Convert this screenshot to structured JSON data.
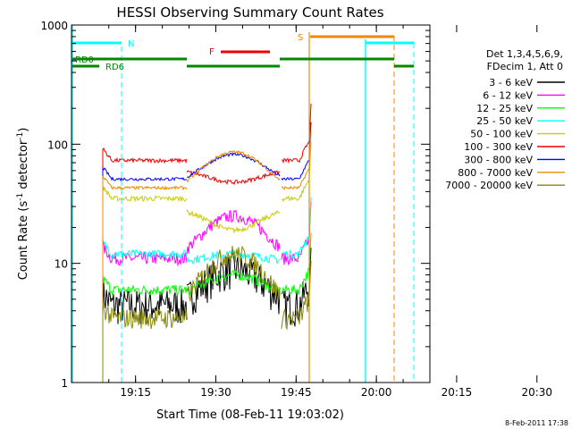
{
  "chart_data": {
    "type": "line",
    "title": "HESSI Observing Summary Count Rates",
    "xlabel": "Start Time (08-Feb-11 19:03:02)",
    "ylabel_main": "Count Rate (s",
    "ylabel_sup1": "-1",
    "ylabel_mid": " detector",
    "ylabel_sup2": "-1",
    "ylabel_end": ")",
    "yscale": "log",
    "ylim": [
      1,
      1000
    ],
    "xlim_minutes": [
      3.03,
      70.0
    ],
    "x_ticks": [
      {
        "m": 15,
        "label": "19:15"
      },
      {
        "m": 30,
        "label": "19:30"
      },
      {
        "m": 45,
        "label": "19:45"
      },
      {
        "m": 60,
        "label": "20:00"
      },
      {
        "m": 75,
        "label": "20:15"
      },
      {
        "m": 90,
        "label": "20:30"
      }
    ],
    "y_ticks": [
      {
        "v": 1,
        "label": "1"
      },
      {
        "v": 10,
        "label": "10"
      },
      {
        "v": 100,
        "label": "100"
      },
      {
        "v": 1000,
        "label": "1000"
      }
    ],
    "legend_header": [
      "Det 1,3,4,5,6,9,",
      "FDecim 1, Att 0"
    ],
    "series": [
      {
        "name": "3 - 6 keV",
        "color": "#000000",
        "level": 4.5,
        "peak": 9
      },
      {
        "name": "6 - 12 keV",
        "color": "#ff00ff",
        "level": 11,
        "peak": 25
      },
      {
        "name": "12 - 25 keV",
        "color": "#00ff00",
        "level": 6,
        "peak": 8
      },
      {
        "name": "25 - 50 keV",
        "color": "#00ffff",
        "level": 12,
        "peak": 12
      },
      {
        "name": "50 - 100 keV",
        "color": "#cccc00",
        "level": 35,
        "peak": 19
      },
      {
        "name": "100 - 300 keV",
        "color": "#ee0000",
        "level": 73,
        "peak": 48
      },
      {
        "name": "300 - 800 keV",
        "color": "#0000ff",
        "level": 51,
        "peak": 82
      },
      {
        "name": "800 - 7000 keV",
        "color": "#ee8800",
        "level": 43,
        "peak": 86
      },
      {
        "name": "7000 - 20000 keV",
        "color": "#888800",
        "level": 3.5,
        "peak": 12
      }
    ],
    "flags": [
      {
        "label": "N",
        "color": "#00ffff"
      },
      {
        "label": "RD0",
        "color": "#008800"
      },
      {
        "label": "RD6",
        "color": "#008800"
      },
      {
        "label": "F",
        "color": "#ee0000"
      },
      {
        "label": "S",
        "color": "#ee8800"
      }
    ],
    "timestamp": "8-Feb-2011 17:38"
  }
}
